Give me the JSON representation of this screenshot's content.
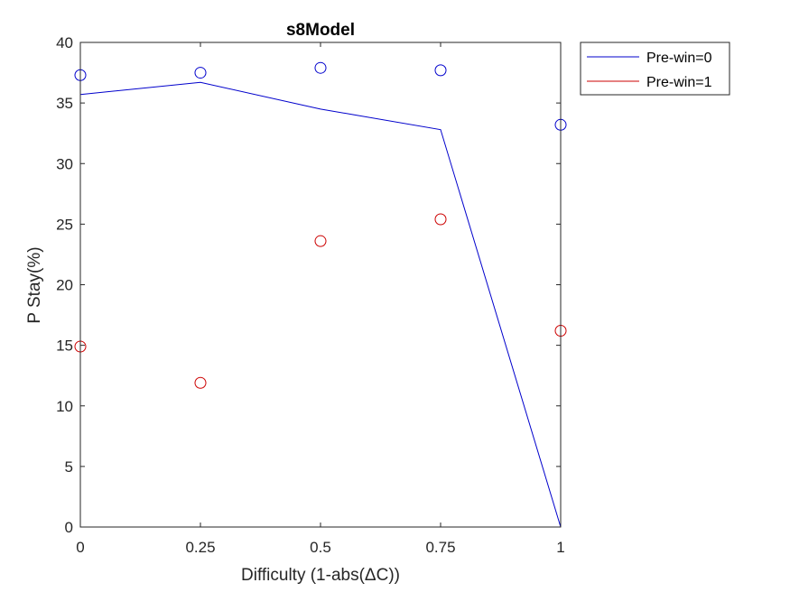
{
  "chart_data": {
    "type": "line",
    "title": "s8Model",
    "xlabel": "Difficulty (1-abs(ΔC))",
    "ylabel": "P Stay(%)",
    "xlim": [
      0,
      1
    ],
    "ylim": [
      0,
      40
    ],
    "xticks": [
      0,
      0.25,
      0.5,
      0.75,
      1
    ],
    "xtick_labels": [
      "0",
      "0.25",
      "0.5",
      "0.75",
      "1"
    ],
    "yticks": [
      0,
      5,
      10,
      15,
      20,
      25,
      30,
      35,
      40
    ],
    "ytick_labels": [
      "0",
      "5",
      "10",
      "15",
      "20",
      "25",
      "30",
      "35",
      "40"
    ],
    "grid": false,
    "legend_position": "outside-top-right",
    "x": [
      0,
      0.25,
      0.5,
      0.75,
      1
    ],
    "series": [
      {
        "name": "Pre-win=0",
        "color": "#0000cc",
        "line": [
          35.7,
          36.7,
          34.5,
          32.8,
          0
        ],
        "points": [
          37.3,
          37.5,
          37.9,
          37.7,
          33.2
        ]
      },
      {
        "name": "Pre-win=1",
        "color": "#cc0000",
        "line": [
          0,
          0,
          0,
          0,
          0
        ],
        "points": [
          14.9,
          11.9,
          23.6,
          25.4,
          16.2
        ]
      }
    ]
  }
}
